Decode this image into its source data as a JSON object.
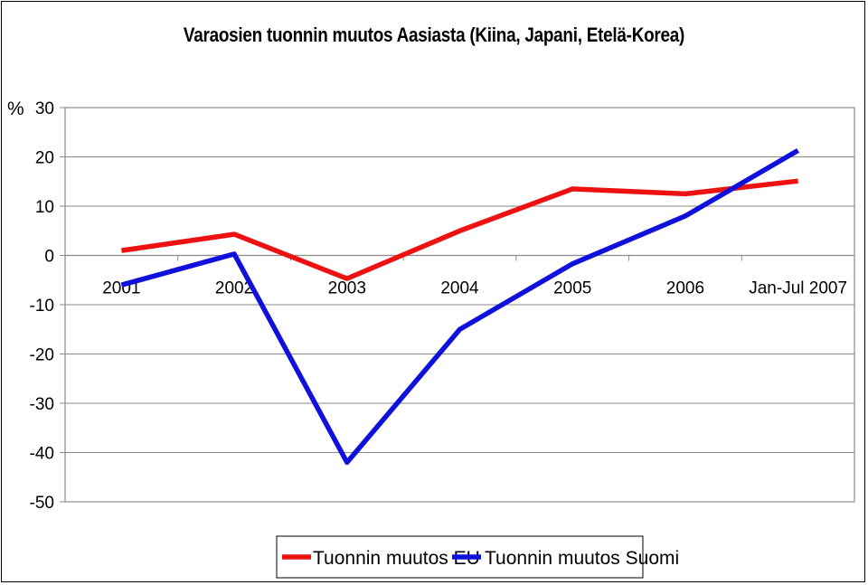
{
  "chart_data": {
    "type": "line",
    "title": "Varaosien tuonnin muutos Aasiasta (Kiina, Japani, Etelä-Korea)",
    "ylabel": "%",
    "xlabel": "",
    "categories": [
      "2001",
      "2002",
      "2003",
      "2004",
      "2005",
      "2006",
      "Jan-Jul 2007"
    ],
    "ylim": [
      -50,
      30
    ],
    "yticks": [
      30,
      20,
      10,
      0,
      -10,
      -20,
      -30,
      -40,
      -50
    ],
    "grid": true,
    "legend": "bottom-center",
    "series": [
      {
        "name": "Tuonnin muutos EU",
        "color": "#ee1111",
        "values": [
          1,
          4.3,
          -4.7,
          5,
          13.5,
          12.5,
          15.1
        ]
      },
      {
        "name": "Tuonnin muutos Suomi",
        "color": "#1010dd",
        "values": [
          -6,
          0.3,
          -42,
          -15,
          -1.7,
          8,
          21.3
        ]
      }
    ]
  }
}
